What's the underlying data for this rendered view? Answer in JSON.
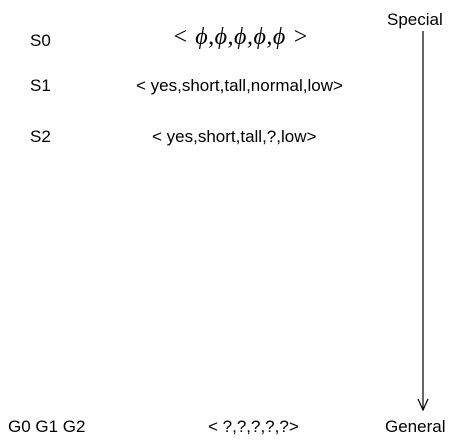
{
  "rows": {
    "s0": {
      "label": "S0",
      "hypothesis": "< ϕ,ϕ,ϕ,ϕ,ϕ >"
    },
    "s1": {
      "label": "S1",
      "hypothesis": "< yes,short,tall,normal,low>"
    },
    "s2": {
      "label": "S2",
      "hypothesis": "< yes,short,tall,?,low>"
    },
    "g": {
      "label": "G0 G1 G2",
      "hypothesis": "< ?,?,?,?,?>"
    }
  },
  "axis": {
    "top_label": "Special",
    "bottom_label": "General",
    "color": "#000000"
  }
}
